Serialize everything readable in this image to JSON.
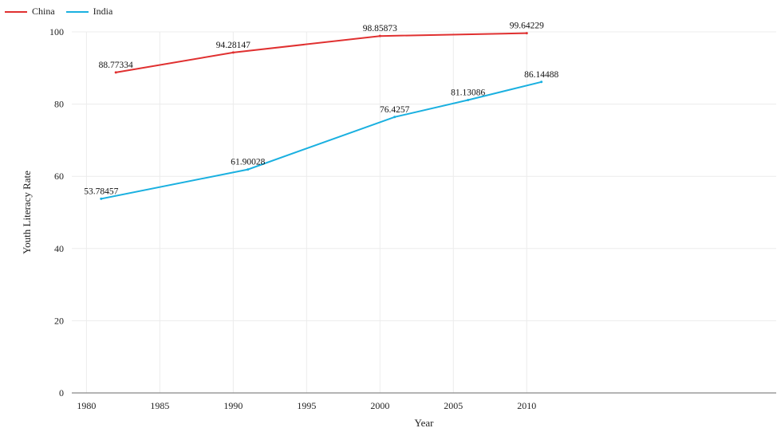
{
  "chart_data": {
    "type": "line",
    "xlabel": "Year",
    "ylabel": "Youth Literacy Rate",
    "xlim": [
      1979,
      2027
    ],
    "ylim": [
      0,
      100
    ],
    "x_ticks": [
      1980,
      1985,
      1990,
      1995,
      2000,
      2005,
      2010
    ],
    "y_ticks": [
      0,
      20,
      40,
      60,
      80,
      100
    ],
    "grid": true,
    "legend_position": "top-left",
    "series": [
      {
        "name": "China",
        "color": "#e03030",
        "x": [
          1982,
          1990,
          2000,
          2010
        ],
        "y": [
          88.77334,
          94.28147,
          98.85873,
          99.64229
        ],
        "labels": [
          "88.77334",
          "94.28147",
          "98.85873",
          "99.64229"
        ]
      },
      {
        "name": "India",
        "color": "#1ab0e0",
        "x": [
          1981,
          1991,
          2001,
          2006,
          2011
        ],
        "y": [
          53.78457,
          61.90028,
          76.4257,
          81.13086,
          86.14488
        ],
        "labels": [
          "53.78457",
          "61.90028",
          "76.4257",
          "81.13086",
          "86.14488"
        ]
      }
    ]
  }
}
